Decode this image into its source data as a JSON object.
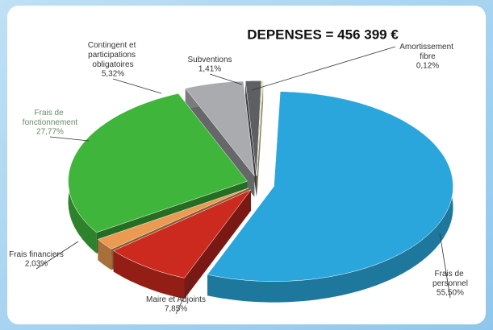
{
  "chart_data": {
    "type": "pie3d",
    "title": "DEPENSES = 456 399 €",
    "categories": [
      "Frais de personnel",
      "Maire et Adjoints",
      "Frais financiers",
      "Frais de fonctionnement",
      "Contingent et participations obligatoires",
      "Subventions",
      "Amortissement fibre"
    ],
    "values": [
      55.5,
      7.85,
      2.03,
      27.77,
      5.32,
      1.41,
      0.12
    ],
    "value_labels": [
      "55,50%",
      "7,85%",
      "2,03%",
      "27,77%",
      "5,32%",
      "1,41%",
      "0,12%"
    ],
    "colors": [
      "#2aa6dc",
      "#cc2a1f",
      "#eb9a52",
      "#40b53c",
      "#a9abae",
      "#5d5f63",
      "#dcd69c"
    ]
  }
}
